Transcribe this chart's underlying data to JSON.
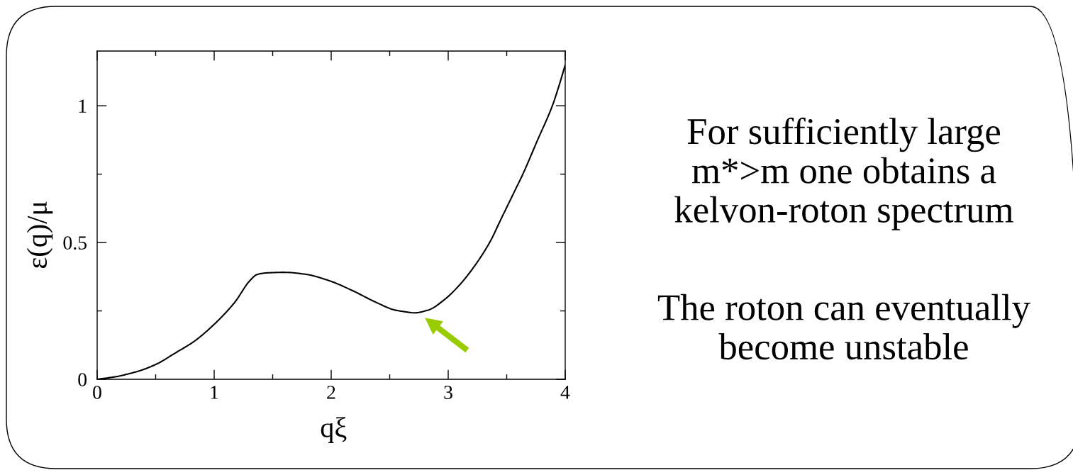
{
  "chart_data": {
    "type": "line",
    "xlabel": "qξ",
    "ylabel": "ε(q)/μ",
    "x": [
      0,
      0.167,
      0.25,
      0.369,
      0.5,
      0.671,
      0.833,
      1.0,
      1.175,
      1.306,
      1.367,
      1.45,
      1.599,
      1.78,
      1.98,
      2.183,
      2.385,
      2.546,
      2.63,
      2.708,
      2.829,
      2.97,
      3.091,
      3.213,
      3.354,
      3.455,
      3.577,
      3.638,
      3.76,
      3.89,
      3.941,
      4.0
    ],
    "series": [
      {
        "color": "#000000",
        "values": [
          0,
          0.01,
          0.018,
          0.032,
          0.054,
          0.097,
          0.14,
          0.201,
          0.281,
          0.361,
          0.383,
          0.389,
          0.391,
          0.384,
          0.361,
          0.324,
          0.281,
          0.253,
          0.247,
          0.243,
          0.253,
          0.292,
          0.342,
          0.407,
          0.5,
          0.589,
          0.696,
          0.75,
          0.871,
          1.0,
          1.065,
          1.149
        ]
      }
    ],
    "xlim": [
      0,
      4
    ],
    "ylim": [
      0,
      1.2
    ],
    "xticks": [
      0,
      {
        "value": 0.5,
        "label": null
      },
      1,
      {
        "value": 1.5,
        "label": null
      },
      2,
      {
        "value": 2.5,
        "label": null
      },
      3,
      {
        "value": 3.5,
        "label": null
      },
      4
    ],
    "yticks": [
      0,
      {
        "value": 0.25,
        "label": null
      },
      0.5,
      {
        "value": 0.75,
        "label": null
      },
      1
    ],
    "line_style": "solid",
    "annotations": [
      "For sufficiently large\nm*>m one obtains a\nkelvon-roton spectrum",
      "The roton can eventually\nbecome unstable"
    ]
  }
}
